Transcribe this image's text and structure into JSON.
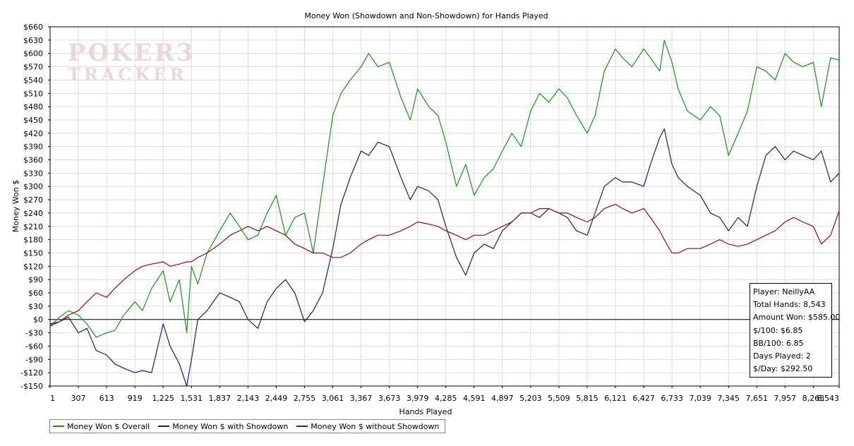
{
  "watermark": {
    "line1": "POKER3",
    "line2": "TRACKER"
  },
  "chart_data": {
    "type": "line",
    "title": "Money Won (Showdown and Non-Showdown) for Hands Played",
    "xlabel": "Hands Played",
    "ylabel": "Money Won $",
    "xlim": [
      1,
      8543
    ],
    "ylim": [
      -150,
      660
    ],
    "x_ticks": [
      1,
      307,
      613,
      919,
      1225,
      1531,
      1837,
      2143,
      2449,
      2755,
      3061,
      3367,
      3673,
      3979,
      4285,
      4591,
      4897,
      5203,
      5509,
      5815,
      6121,
      6427,
      6733,
      7039,
      7345,
      7651,
      7957,
      8263,
      8543
    ],
    "x_tick_labels": [
      "1",
      "307",
      "613",
      "919",
      "1,225",
      "1,531",
      "1,837",
      "2,143",
      "2,449",
      "2,755",
      "3,061",
      "3,367",
      "3,673",
      "3,979",
      "4,285",
      "4,591",
      "4,897",
      "5,203",
      "5,509",
      "5,815",
      "6,121",
      "6,427",
      "6,733",
      "7,039",
      "7,345",
      "7,651",
      "7,957",
      "8,263",
      "8,543"
    ],
    "y_ticks": [
      -150,
      -120,
      -90,
      -60,
      -30,
      0,
      30,
      60,
      90,
      120,
      150,
      180,
      210,
      240,
      270,
      300,
      330,
      360,
      390,
      420,
      450,
      480,
      510,
      540,
      570,
      600,
      630,
      660
    ],
    "y_tick_labels": [
      "-$150",
      "-$120",
      "-$90",
      "-$60",
      "-$30",
      "$0",
      "$30",
      "$60",
      "$90",
      "$120",
      "$150",
      "$180",
      "$210",
      "$240",
      "$270",
      "$300",
      "$330",
      "$360",
      "$390",
      "$420",
      "$450",
      "$480",
      "$510",
      "$540",
      "$570",
      "$600",
      "$630",
      "$660"
    ],
    "grid": true,
    "legend_position": "bottom-left",
    "series": [
      {
        "name": "Money Won $ Overall",
        "color": "#119911",
        "x": [
          1,
          100,
          200,
          307,
          400,
          500,
          613,
          700,
          800,
          919,
          1000,
          1100,
          1225,
          1300,
          1400,
          1480,
          1531,
          1600,
          1700,
          1837,
          1950,
          2050,
          2143,
          2250,
          2350,
          2449,
          2550,
          2650,
          2755,
          2850,
          2950,
          3061,
          3150,
          3250,
          3367,
          3450,
          3550,
          3673,
          3800,
          3900,
          3979,
          4100,
          4200,
          4285,
          4400,
          4500,
          4591,
          4700,
          4800,
          4897,
          5000,
          5100,
          5203,
          5300,
          5400,
          5509,
          5600,
          5700,
          5815,
          5900,
          6000,
          6121,
          6200,
          6300,
          6427,
          6500,
          6600,
          6650,
          6733,
          6800,
          6900,
          7039,
          7150,
          7250,
          7345,
          7450,
          7550,
          7651,
          7750,
          7850,
          7957,
          8050,
          8150,
          8263,
          8350,
          8450,
          8543
        ],
        "y": [
          -15,
          5,
          20,
          10,
          -10,
          -40,
          -30,
          -25,
          10,
          40,
          20,
          70,
          110,
          40,
          90,
          -30,
          120,
          80,
          150,
          200,
          240,
          210,
          180,
          190,
          240,
          280,
          190,
          230,
          240,
          150,
          300,
          460,
          510,
          540,
          570,
          600,
          570,
          580,
          500,
          450,
          520,
          480,
          460,
          400,
          300,
          350,
          280,
          320,
          340,
          380,
          420,
          390,
          470,
          510,
          490,
          520,
          500,
          460,
          420,
          460,
          560,
          610,
          590,
          570,
          610,
          590,
          560,
          630,
          580,
          520,
          470,
          450,
          480,
          460,
          370,
          420,
          470,
          570,
          560,
          540,
          600,
          580,
          570,
          580,
          480,
          590,
          585
        ]
      },
      {
        "name": "Money Won $ with Showdown",
        "color": "#1a1a7a",
        "x": [
          1,
          100,
          200,
          307,
          400,
          500,
          613,
          700,
          800,
          919,
          1000,
          1100,
          1225,
          1300,
          1400,
          1480,
          1531,
          1600,
          1700,
          1837,
          1950,
          2050,
          2143,
          2250,
          2350,
          2449,
          2550,
          2650,
          2755,
          2850,
          2950,
          3061,
          3150,
          3250,
          3367,
          3450,
          3550,
          3673,
          3800,
          3900,
          3979,
          4100,
          4200,
          4285,
          4400,
          4500,
          4591,
          4700,
          4800,
          4897,
          5000,
          5100,
          5203,
          5300,
          5400,
          5509,
          5600,
          5700,
          5815,
          5900,
          6000,
          6121,
          6200,
          6300,
          6427,
          6500,
          6600,
          6650,
          6733,
          6800,
          6900,
          7039,
          7150,
          7250,
          7345,
          7450,
          7550,
          7651,
          7750,
          7850,
          7957,
          8050,
          8150,
          8263,
          8350,
          8450,
          8543
        ],
        "y": [
          -10,
          -5,
          5,
          -30,
          -20,
          -70,
          -80,
          -100,
          -110,
          -120,
          -115,
          -120,
          -10,
          -60,
          -100,
          -150,
          -90,
          0,
          20,
          60,
          50,
          40,
          0,
          -20,
          40,
          70,
          90,
          60,
          -5,
          20,
          60,
          160,
          260,
          320,
          380,
          370,
          400,
          390,
          320,
          270,
          300,
          290,
          270,
          210,
          140,
          100,
          150,
          170,
          160,
          200,
          220,
          240,
          240,
          230,
          250,
          240,
          230,
          200,
          190,
          240,
          300,
          320,
          310,
          310,
          300,
          350,
          410,
          430,
          350,
          320,
          300,
          280,
          240,
          230,
          200,
          230,
          210,
          300,
          370,
          390,
          360,
          380,
          370,
          360,
          380,
          310,
          330
        ]
      },
      {
        "name": "Money Won $ without Showdown",
        "color": "#8b1010",
        "x": [
          1,
          100,
          200,
          307,
          400,
          500,
          613,
          700,
          800,
          919,
          1000,
          1100,
          1225,
          1300,
          1400,
          1480,
          1531,
          1600,
          1700,
          1837,
          1950,
          2050,
          2143,
          2250,
          2350,
          2449,
          2550,
          2650,
          2755,
          2850,
          2950,
          3061,
          3150,
          3250,
          3367,
          3450,
          3550,
          3673,
          3800,
          3900,
          3979,
          4100,
          4200,
          4285,
          4400,
          4500,
          4591,
          4700,
          4800,
          4897,
          5000,
          5100,
          5203,
          5300,
          5400,
          5509,
          5600,
          5700,
          5815,
          5900,
          6000,
          6121,
          6200,
          6300,
          6427,
          6500,
          6600,
          6650,
          6733,
          6800,
          6900,
          7039,
          7150,
          7250,
          7345,
          7450,
          7550,
          7651,
          7750,
          7850,
          7957,
          8050,
          8150,
          8263,
          8350,
          8450,
          8543
        ],
        "y": [
          -15,
          -5,
          10,
          20,
          40,
          60,
          50,
          70,
          90,
          110,
          120,
          125,
          130,
          120,
          125,
          130,
          130,
          140,
          150,
          170,
          190,
          200,
          210,
          200,
          210,
          200,
          190,
          170,
          160,
          150,
          150,
          140,
          140,
          150,
          170,
          180,
          190,
          190,
          200,
          210,
          220,
          215,
          210,
          200,
          190,
          180,
          190,
          190,
          200,
          210,
          220,
          240,
          240,
          250,
          250,
          240,
          240,
          230,
          220,
          230,
          250,
          260,
          250,
          240,
          250,
          230,
          200,
          180,
          150,
          150,
          160,
          160,
          170,
          180,
          170,
          165,
          170,
          180,
          190,
          200,
          220,
          230,
          220,
          210,
          170,
          190,
          245
        ]
      }
    ]
  },
  "stats": {
    "player": "Player: NeillyAA",
    "total_hands": "Total Hands: 8,543",
    "amount_won": "Amount Won: $585.00",
    "per_100": "$/100: $6.85",
    "bb_per_100": "BB/100: 6.85",
    "days_played": "Days Played: 2",
    "per_day": "$/Day: $292.50"
  }
}
